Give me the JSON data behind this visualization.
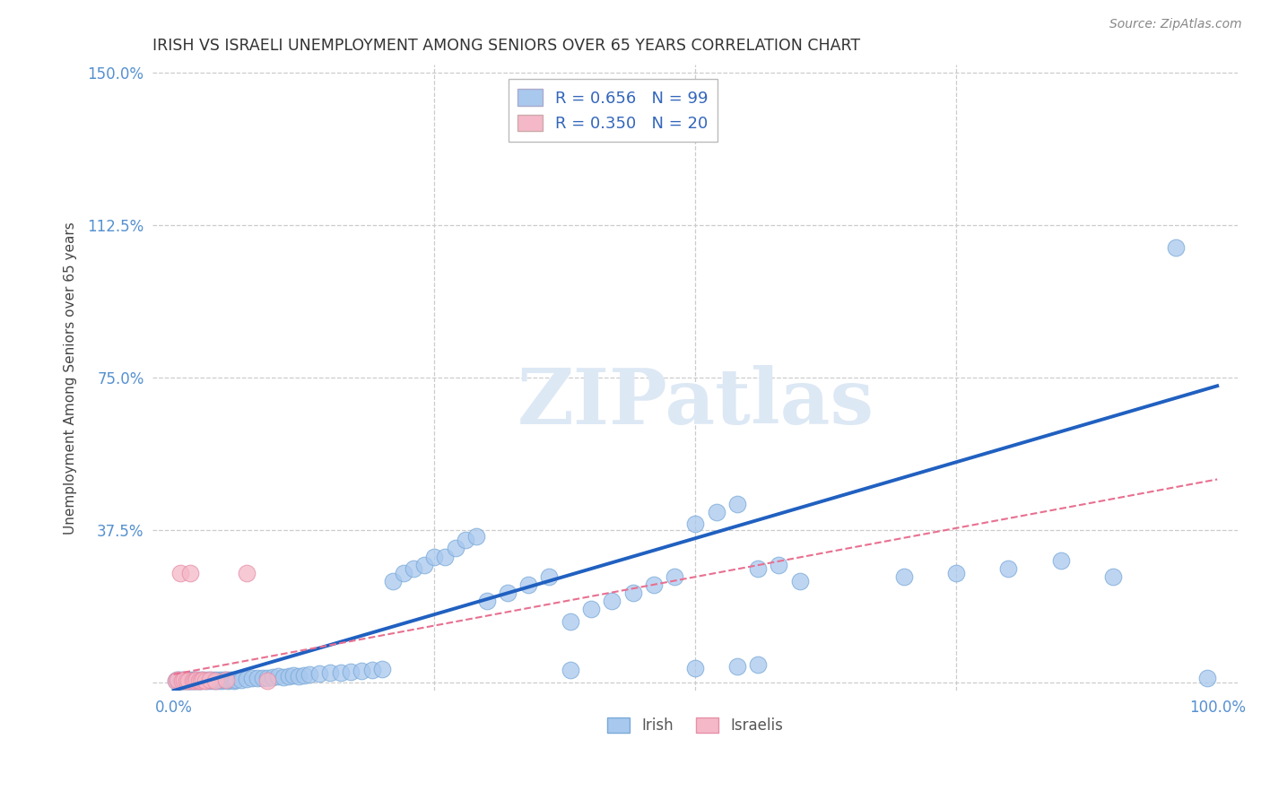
{
  "title": "IRISH VS ISRAELI UNEMPLOYMENT AMONG SENIORS OVER 65 YEARS CORRELATION CHART",
  "source": "Source: ZipAtlas.com",
  "ylabel": "Unemployment Among Seniors over 65 years",
  "xlim": [
    -0.02,
    1.02
  ],
  "ylim": [
    -0.02,
    1.52
  ],
  "xticks": [
    0.0,
    0.25,
    0.5,
    0.75,
    1.0
  ],
  "xtick_labels": [
    "0.0%",
    "",
    "",
    "",
    "100.0%"
  ],
  "ytick_labels": [
    "",
    "37.5%",
    "75.0%",
    "112.5%",
    "150.0%"
  ],
  "yticks": [
    0.0,
    0.375,
    0.75,
    1.125,
    1.5
  ],
  "irish_R": 0.656,
  "irish_N": 99,
  "israeli_R": 0.35,
  "israeli_N": 20,
  "irish_color": "#a8c8ee",
  "irish_edge_color": "#7aaad8",
  "israeli_color": "#f4b8c8",
  "israeli_edge_color": "#e890a8",
  "irish_line_color": "#2060c0",
  "israeli_line_color": "#e87090",
  "legend_labels": [
    "Irish",
    "Israelis"
  ],
  "irish_line_x0": 0.0,
  "irish_line_y0": -0.02,
  "irish_line_x1": 1.0,
  "irish_line_y1": 0.73,
  "israeli_line_x0": 0.0,
  "israeli_line_y0": 0.02,
  "israeli_line_x1": 1.0,
  "israeli_line_y1": 0.5,
  "irish_x": [
    0.002,
    0.003,
    0.004,
    0.005,
    0.006,
    0.007,
    0.008,
    0.009,
    0.01,
    0.011,
    0.012,
    0.013,
    0.014,
    0.015,
    0.016,
    0.017,
    0.018,
    0.019,
    0.02,
    0.021,
    0.022,
    0.023,
    0.024,
    0.025,
    0.026,
    0.028,
    0.03,
    0.032,
    0.034,
    0.036,
    0.038,
    0.04,
    0.042,
    0.044,
    0.046,
    0.048,
    0.05,
    0.052,
    0.054,
    0.056,
    0.058,
    0.06,
    0.065,
    0.07,
    0.075,
    0.08,
    0.085,
    0.09,
    0.095,
    0.1,
    0.105,
    0.11,
    0.115,
    0.12,
    0.125,
    0.13,
    0.14,
    0.15,
    0.16,
    0.17,
    0.18,
    0.19,
    0.2,
    0.21,
    0.22,
    0.23,
    0.24,
    0.25,
    0.26,
    0.27,
    0.28,
    0.29,
    0.3,
    0.32,
    0.34,
    0.36,
    0.38,
    0.4,
    0.42,
    0.44,
    0.46,
    0.48,
    0.5,
    0.52,
    0.54,
    0.56,
    0.38,
    0.5,
    0.54,
    0.56,
    0.58,
    0.6,
    0.7,
    0.75,
    0.8,
    0.85,
    0.9,
    0.96,
    0.99
  ],
  "irish_y": [
    0.005,
    0.006,
    0.004,
    0.007,
    0.005,
    0.006,
    0.004,
    0.005,
    0.006,
    0.005,
    0.004,
    0.006,
    0.005,
    0.006,
    0.004,
    0.005,
    0.006,
    0.005,
    0.006,
    0.005,
    0.006,
    0.004,
    0.005,
    0.006,
    0.005,
    0.006,
    0.005,
    0.006,
    0.005,
    0.006,
    0.005,
    0.006,
    0.005,
    0.006,
    0.005,
    0.006,
    0.007,
    0.005,
    0.006,
    0.007,
    0.005,
    0.006,
    0.007,
    0.008,
    0.01,
    0.012,
    0.01,
    0.012,
    0.013,
    0.015,
    0.013,
    0.015,
    0.017,
    0.016,
    0.018,
    0.02,
    0.022,
    0.024,
    0.025,
    0.027,
    0.028,
    0.03,
    0.032,
    0.25,
    0.27,
    0.28,
    0.29,
    0.31,
    0.31,
    0.33,
    0.35,
    0.36,
    0.2,
    0.22,
    0.24,
    0.26,
    0.15,
    0.18,
    0.2,
    0.22,
    0.24,
    0.26,
    0.39,
    0.42,
    0.44,
    0.28,
    0.03,
    0.035,
    0.04,
    0.045,
    0.29,
    0.25,
    0.26,
    0.27,
    0.28,
    0.3,
    0.26,
    1.07,
    0.01
  ],
  "israeli_x": [
    0.002,
    0.004,
    0.006,
    0.008,
    0.01,
    0.012,
    0.014,
    0.016,
    0.018,
    0.02,
    0.022,
    0.024,
    0.026,
    0.028,
    0.03,
    0.035,
    0.04,
    0.05,
    0.07,
    0.09
  ],
  "israeli_y": [
    0.005,
    0.006,
    0.27,
    0.005,
    0.006,
    0.004,
    0.005,
    0.27,
    0.005,
    0.005,
    0.006,
    0.005,
    0.004,
    0.006,
    0.005,
    0.006,
    0.005,
    0.006,
    0.27,
    0.005
  ]
}
